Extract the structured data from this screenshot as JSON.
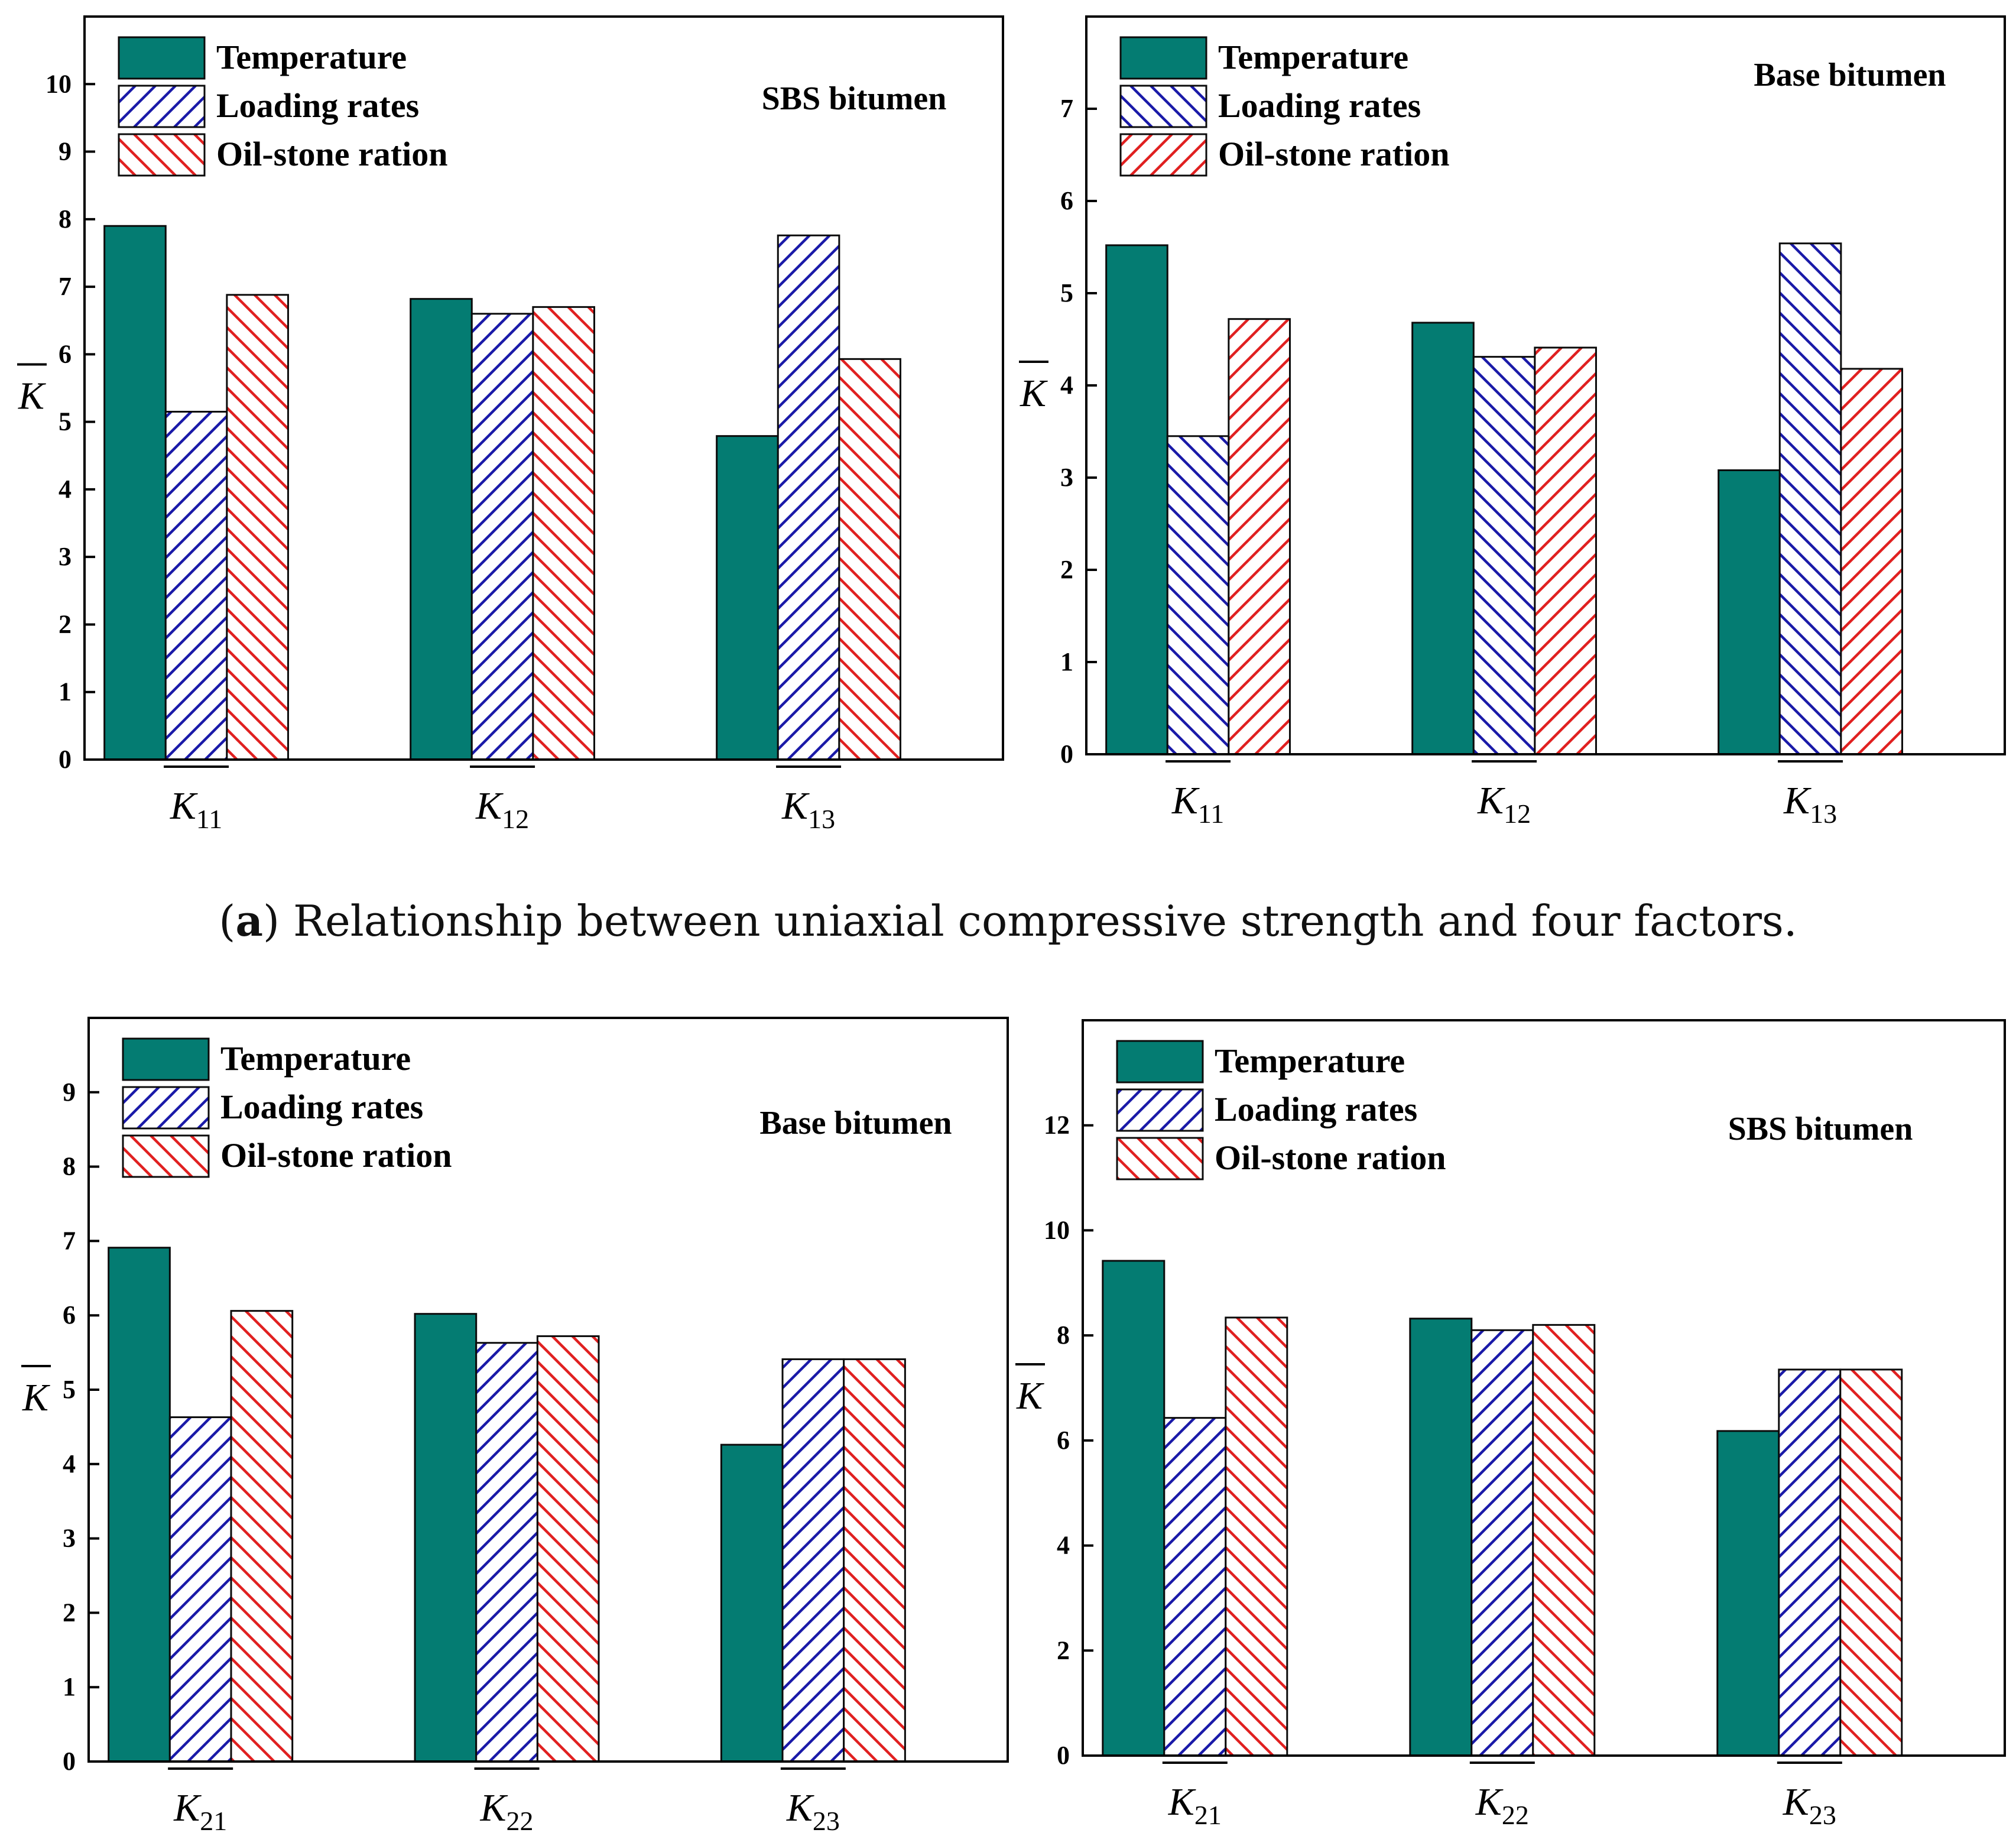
{
  "colors": {
    "temperature": "#047c72",
    "loading": "#1a1aa8",
    "oilstone": "#e02020",
    "axis": "#000000"
  },
  "caption": {
    "label": "a",
    "text": " Relationship between uniaxial compressive strength and four factors."
  },
  "chart_data": [
    {
      "type": "bar",
      "title": "SBS bitumen",
      "ylabel": "K",
      "ylim": [
        0,
        11
      ],
      "yticks": [
        0,
        1,
        2,
        3,
        4,
        5,
        6,
        7,
        8,
        9,
        10
      ],
      "categories": [
        {
          "base": "K",
          "sub": "11"
        },
        {
          "base": "K",
          "sub": "12"
        },
        {
          "base": "K",
          "sub": "13"
        }
      ],
      "series": [
        {
          "name": "Temperature",
          "values": [
            7.9,
            6.82,
            4.79
          ]
        },
        {
          "name": "Loading rates",
          "values": [
            5.15,
            6.6,
            7.76
          ]
        },
        {
          "name": "Oil-stone ration",
          "values": [
            6.88,
            6.7,
            5.93
          ]
        }
      ],
      "legend": "top-left",
      "hatch": "diag-up"
    },
    {
      "type": "bar",
      "title": "Base bitumen",
      "ylabel": "K",
      "ylim": [
        0,
        8
      ],
      "yticks": [
        0,
        1,
        2,
        3,
        4,
        5,
        6,
        7
      ],
      "categories": [
        {
          "base": "K",
          "sub": "11"
        },
        {
          "base": "K",
          "sub": "12"
        },
        {
          "base": "K",
          "sub": "13"
        }
      ],
      "series": [
        {
          "name": "Temperature",
          "values": [
            5.52,
            4.68,
            3.08
          ]
        },
        {
          "name": "Loading rates",
          "values": [
            3.45,
            4.31,
            5.54
          ]
        },
        {
          "name": "Oil-stone ration",
          "values": [
            4.72,
            4.41,
            4.18
          ]
        }
      ],
      "legend": "top-left",
      "hatch": "diag-down"
    },
    {
      "type": "bar",
      "title": "Base bitumen",
      "ylabel": "K",
      "ylim": [
        0,
        10
      ],
      "yticks": [
        0,
        1,
        2,
        3,
        4,
        5,
        6,
        7,
        8,
        9
      ],
      "categories": [
        {
          "base": "K",
          "sub": "21"
        },
        {
          "base": "K",
          "sub": "22"
        },
        {
          "base": "K",
          "sub": "23"
        }
      ],
      "series": [
        {
          "name": "Temperature",
          "values": [
            6.91,
            6.02,
            4.26
          ]
        },
        {
          "name": "Loading rates",
          "values": [
            4.63,
            5.63,
            5.41
          ]
        },
        {
          "name": "Oil-stone ration",
          "values": [
            6.06,
            5.72,
            5.41
          ]
        }
      ],
      "legend": "top-left",
      "hatch": "diag-up"
    },
    {
      "type": "bar",
      "title": "SBS bitumen",
      "ylabel": "K",
      "ylim": [
        0,
        14
      ],
      "yticks": [
        0,
        2,
        4,
        6,
        8,
        10,
        12
      ],
      "categories": [
        {
          "base": "K",
          "sub": "21"
        },
        {
          "base": "K",
          "sub": "22"
        },
        {
          "base": "K",
          "sub": "23"
        }
      ],
      "series": [
        {
          "name": "Temperature",
          "values": [
            9.42,
            8.32,
            6.18
          ]
        },
        {
          "name": "Loading rates",
          "values": [
            6.43,
            8.1,
            7.35
          ]
        },
        {
          "name": "Oil-stone ration",
          "values": [
            8.34,
            8.2,
            7.35
          ]
        }
      ],
      "legend": "top-left",
      "hatch": "diag-up"
    }
  ]
}
